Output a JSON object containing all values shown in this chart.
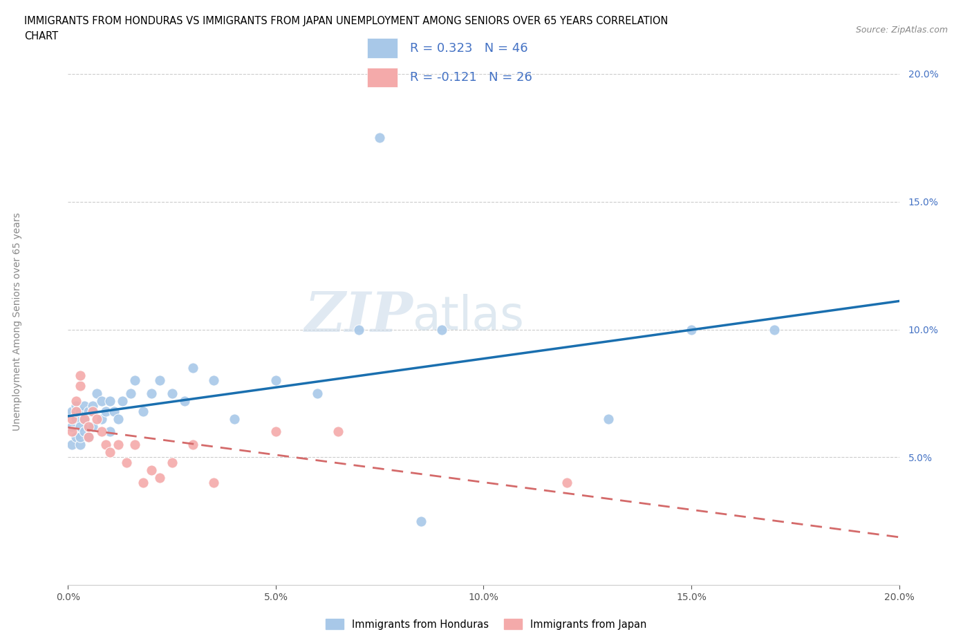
{
  "title_line1": "IMMIGRANTS FROM HONDURAS VS IMMIGRANTS FROM JAPAN UNEMPLOYMENT AMONG SENIORS OVER 65 YEARS CORRELATION",
  "title_line2": "CHART",
  "source": "Source: ZipAtlas.com",
  "ylabel": "Unemployment Among Seniors over 65 years",
  "xlim": [
    0.0,
    0.2
  ],
  "ylim": [
    0.0,
    0.21
  ],
  "yticks": [
    0.05,
    0.1,
    0.15,
    0.2
  ],
  "ytick_labels": [
    "5.0%",
    "10.0%",
    "15.0%",
    "20.0%"
  ],
  "xticks": [
    0.0,
    0.05,
    0.1,
    0.15,
    0.2
  ],
  "xtick_labels": [
    "0.0%",
    "5.0%",
    "10.0%",
    "15.0%",
    "20.0%"
  ],
  "R_honduras": 0.323,
  "N_honduras": 46,
  "R_japan": -0.121,
  "N_japan": 26,
  "blue_color": "#a8c8e8",
  "pink_color": "#f4aaaa",
  "trend_blue": "#1a6faf",
  "trend_pink": "#d46a6a",
  "label_color": "#4472c4",
  "watermark_zip": "ZIP",
  "watermark_atlas": "atlas",
  "legend_label_honduras": "Immigrants from Honduras",
  "legend_label_japan": "Immigrants from Japan",
  "honduras_x": [
    0.001,
    0.001,
    0.001,
    0.002,
    0.002,
    0.002,
    0.003,
    0.003,
    0.003,
    0.003,
    0.004,
    0.004,
    0.004,
    0.005,
    0.005,
    0.005,
    0.006,
    0.006,
    0.007,
    0.008,
    0.008,
    0.009,
    0.01,
    0.01,
    0.011,
    0.012,
    0.013,
    0.015,
    0.016,
    0.018,
    0.02,
    0.022,
    0.025,
    0.028,
    0.03,
    0.035,
    0.04,
    0.05,
    0.06,
    0.07,
    0.075,
    0.085,
    0.09,
    0.13,
    0.15,
    0.17
  ],
  "honduras_y": [
    0.055,
    0.062,
    0.068,
    0.058,
    0.065,
    0.07,
    0.055,
    0.058,
    0.062,
    0.068,
    0.06,
    0.065,
    0.07,
    0.058,
    0.062,
    0.068,
    0.062,
    0.07,
    0.075,
    0.065,
    0.072,
    0.068,
    0.06,
    0.072,
    0.068,
    0.065,
    0.072,
    0.075,
    0.08,
    0.068,
    0.075,
    0.08,
    0.075,
    0.072,
    0.085,
    0.08,
    0.065,
    0.08,
    0.075,
    0.1,
    0.175,
    0.025,
    0.1,
    0.065,
    0.1,
    0.1
  ],
  "japan_x": [
    0.001,
    0.001,
    0.002,
    0.002,
    0.003,
    0.003,
    0.004,
    0.005,
    0.005,
    0.006,
    0.007,
    0.008,
    0.009,
    0.01,
    0.012,
    0.014,
    0.016,
    0.018,
    0.02,
    0.022,
    0.025,
    0.03,
    0.035,
    0.05,
    0.065,
    0.12
  ],
  "japan_y": [
    0.06,
    0.065,
    0.072,
    0.068,
    0.078,
    0.082,
    0.065,
    0.058,
    0.062,
    0.068,
    0.065,
    0.06,
    0.055,
    0.052,
    0.055,
    0.048,
    0.055,
    0.04,
    0.045,
    0.042,
    0.048,
    0.055,
    0.04,
    0.06,
    0.06,
    0.04
  ]
}
